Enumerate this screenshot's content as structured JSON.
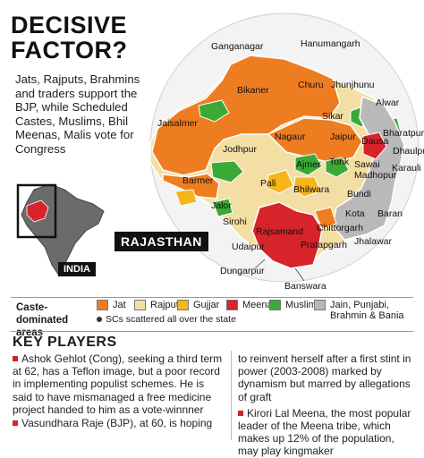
{
  "title_line1": "DECISIVE",
  "title_line2": "FACTOR?",
  "intro": "Jats, Rajputs, Brahmins and traders support the BJP, while Scheduled Castes, Muslims, Bhil Meenas, Malis vote for Congress",
  "state_label": "RAJASTHAN",
  "inset_label": "INDIA",
  "districts": {
    "ganganagar": "Ganganagar",
    "hanumangarh": "Hanumangarh",
    "bikaner": "Bikaner",
    "churu": "Churu",
    "jhunjhunu": "Jhunjhunu",
    "alwar": "Alwar",
    "jaisalmer": "Jaisalmer",
    "sikar": "Sikar",
    "bharatpur": "Bharatpur",
    "nagaur": "Nagaur",
    "jaipur": "Jaipur",
    "dausa": "Dausa",
    "dhaulpur": "Dhaulpur",
    "jodhpur": "Jodhpur",
    "sawai_madhopur": "Sawai\nMadhopur",
    "karauli": "Karauli",
    "ajmer": "Ajmer",
    "tonk": "Tonk",
    "barmer": "Barmer",
    "pali": "Pali",
    "bhilwara": "Bhilwara",
    "bundi": "Bundi",
    "jalor": "Jalor",
    "sirohi": "Sirohi",
    "rajsamand": "Rajsamand",
    "kota": "Kota",
    "baran": "Baran",
    "chittorgarh": "Chittorgarh",
    "udaipur": "Udaipur",
    "pratapgarh": "Pratapgarh",
    "jhalawar": "Jhalawar",
    "dungarpur": "Dungarpur",
    "banswara": "Banswara"
  },
  "legend": {
    "title": "Caste-dominated areas",
    "items": [
      {
        "label": "Jat",
        "color": "#ee7d22"
      },
      {
        "label": "Rajput",
        "color": "#f3dfa3"
      },
      {
        "label": "Gujjar",
        "color": "#f6b51c"
      },
      {
        "label": "Meena",
        "color": "#d7232a"
      },
      {
        "label": "Muslim",
        "color": "#3aa935"
      },
      {
        "label": "Jain, Punjabi, Brahmin & Bania",
        "color": "#b9b9b9"
      }
    ],
    "note": "SCs scattered all over the state"
  },
  "key_players": {
    "title": "KEY PLAYERS",
    "col1_p1": "Ashok Gehlot (Cong), seeking a third term at 62, has a Teflon image, but a poor record in implementing populist schemes. He is said to have mismanaged a free medicine project handed to him as a vote-winnner",
    "col1_p2": "Vasundhara Raje (BJP), at 60, is hoping",
    "col2_p1": "to reinvent herself after a first stint in power (2003-2008) marked by dynamism but marred by allegations of graft",
    "col2_p2": "Kirori Lal Meena, the most popular leader of the Meena tribe, which makes up 12% of the population, may play kingmaker"
  }
}
